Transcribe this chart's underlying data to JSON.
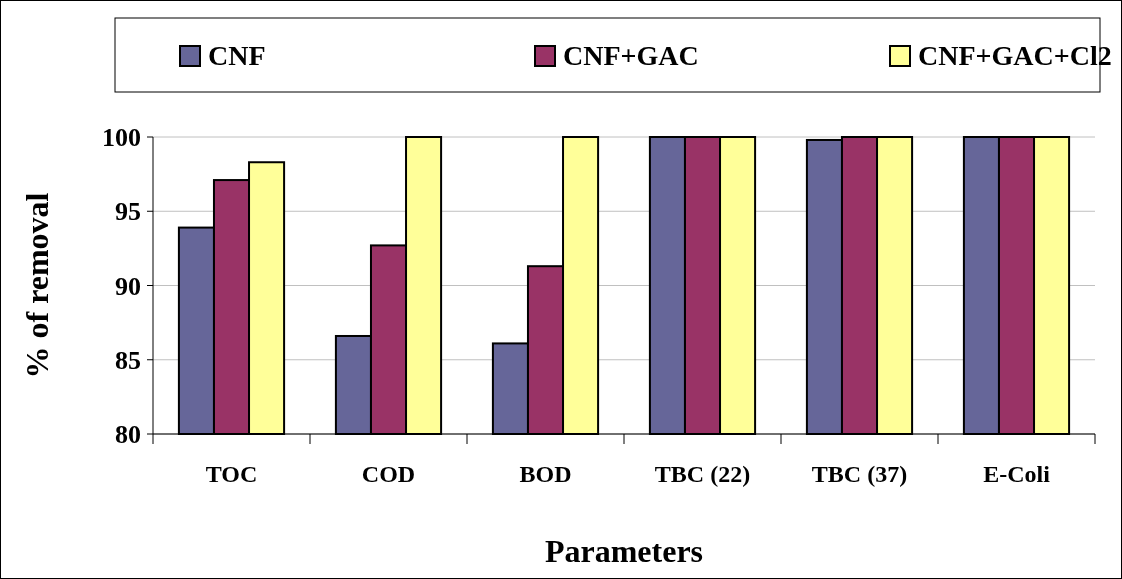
{
  "chart_data": {
    "type": "bar",
    "xlabel": "Parameters",
    "ylabel": "% of removal",
    "categories": [
      "TOC",
      "COD",
      "BOD",
      "TBC (22)",
      "TBC (37)",
      "E-Coli"
    ],
    "series": [
      {
        "name": "CNF",
        "color": "#666699",
        "values": [
          93.9,
          86.6,
          86.1,
          100,
          99.8,
          100
        ]
      },
      {
        "name": "CNF+GAC",
        "color": "#993366",
        "values": [
          97.1,
          92.7,
          91.3,
          100,
          100,
          100
        ]
      },
      {
        "name": "CNF+GAC+Cl2",
        "color": "#ffff99",
        "values": [
          98.3,
          100,
          100,
          100,
          100,
          100
        ]
      }
    ],
    "ylim": [
      80,
      100
    ],
    "yticks": [
      80,
      85,
      90,
      95,
      100
    ],
    "grid": "y",
    "legend": "top"
  }
}
